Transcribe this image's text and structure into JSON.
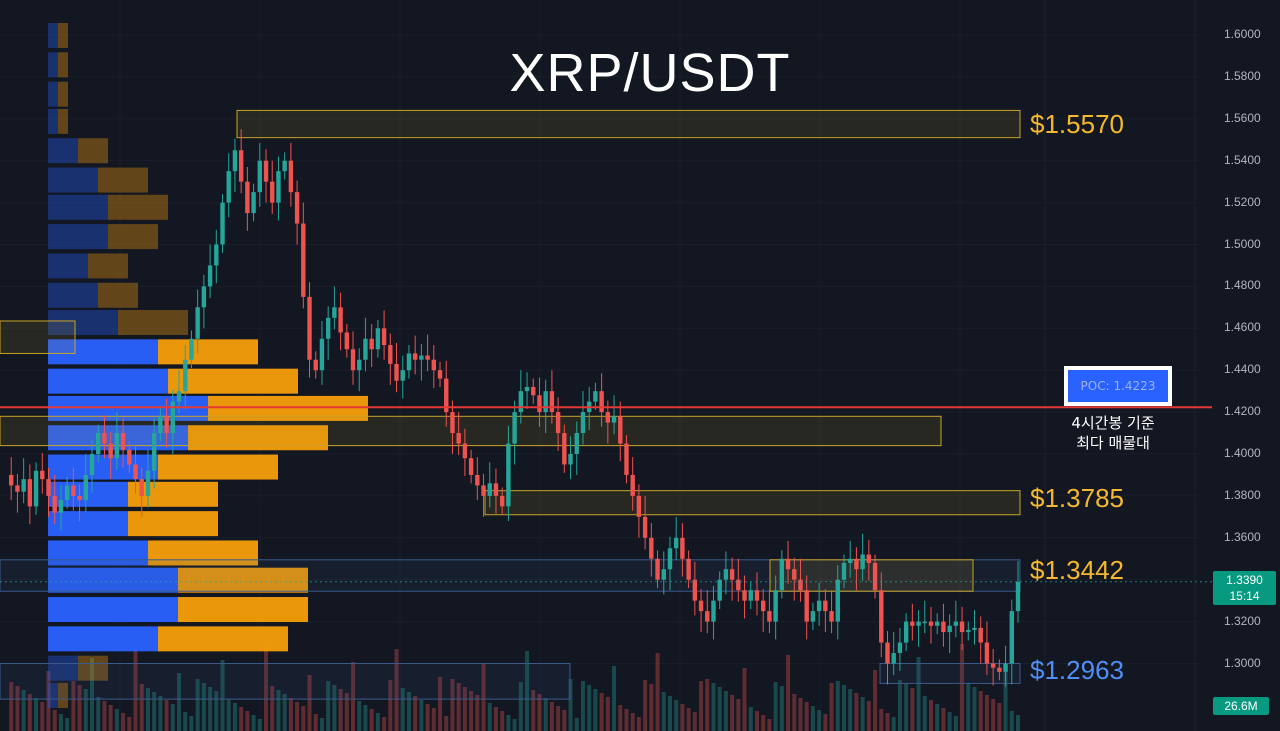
{
  "title": "XRP/USDT",
  "colors": {
    "background": "#131722",
    "candle_up": "#26a69a",
    "candle_down": "#ef5350",
    "profile_buy": "#2962ff",
    "profile_sell": "#f59e0b",
    "poc_line": "#e53935",
    "zone_yellow": "#c9a227",
    "zone_blue": "#3a5a8c",
    "label_gold": "#f5b82e",
    "label_blue": "#4f8ef7"
  },
  "levels": [
    {
      "id": "level-1-5570",
      "label": "$1.5570",
      "price": 1.557,
      "color": "#f5b82e"
    },
    {
      "id": "level-1-3785",
      "label": "$1.3785",
      "price": 1.3785,
      "color": "#f5b82e"
    },
    {
      "id": "level-1-3442",
      "label": "$1.3442",
      "price": 1.3442,
      "color": "#f5b82e"
    },
    {
      "id": "level-1-2963",
      "label": "$1.2963",
      "price": 1.2963,
      "color": "#4f8ef7"
    }
  ],
  "poc": {
    "label": "POC: 1.4223",
    "price": 1.4223,
    "note_line1": "4시간봉 기준",
    "note_line2": "최다 매물대"
  },
  "current": {
    "price": "1.3390",
    "countdown": "15:14"
  },
  "volume_tag": "26.6M",
  "chart_data": {
    "type": "candlestick",
    "title": "XRP/USDT",
    "timeframe_note": "4시간봉 기준",
    "yaxis": {
      "ticks": [
        "1.6000",
        "1.5800",
        "1.5600",
        "1.5400",
        "1.5200",
        "1.5000",
        "1.4800",
        "1.4600",
        "1.4400",
        "1.4200",
        "1.4000",
        "1.3800",
        "1.3600",
        "1.3400",
        "1.3200",
        "1.3000"
      ],
      "range": [
        1.28,
        1.61
      ]
    },
    "key_levels": [
      1.557,
      1.4223,
      1.3785,
      1.3442,
      1.2963
    ],
    "last_price": 1.339,
    "last_volume": "26.6M",
    "price_path": [
      1.39,
      1.385,
      1.382,
      1.388,
      1.375,
      1.392,
      1.388,
      1.38,
      1.372,
      1.378,
      1.385,
      1.38,
      1.378,
      1.39,
      1.4,
      1.41,
      1.405,
      1.398,
      1.41,
      1.402,
      1.395,
      1.388,
      1.38,
      1.392,
      1.41,
      1.418,
      1.41,
      1.425,
      1.43,
      1.445,
      1.455,
      1.47,
      1.48,
      1.49,
      1.5,
      1.52,
      1.535,
      1.545,
      1.53,
      1.515,
      1.525,
      1.54,
      1.53,
      1.52,
      1.535,
      1.54,
      1.525,
      1.51,
      1.475,
      1.445,
      1.44,
      1.455,
      1.465,
      1.47,
      1.458,
      1.45,
      1.44,
      1.445,
      1.455,
      1.45,
      1.46,
      1.452,
      1.443,
      1.435,
      1.44,
      1.448,
      1.445,
      1.447,
      1.445,
      1.44,
      1.436,
      1.42,
      1.41,
      1.405,
      1.398,
      1.39,
      1.385,
      1.38,
      1.386,
      1.38,
      1.375,
      1.405,
      1.42,
      1.43,
      1.432,
      1.428,
      1.42,
      1.43,
      1.42,
      1.41,
      1.395,
      1.4,
      1.41,
      1.42,
      1.425,
      1.43,
      1.42,
      1.415,
      1.418,
      1.405,
      1.39,
      1.38,
      1.37,
      1.36,
      1.35,
      1.34,
      1.345,
      1.355,
      1.36,
      1.35,
      1.34,
      1.33,
      1.325,
      1.32,
      1.33,
      1.34,
      1.345,
      1.34,
      1.335,
      1.33,
      1.335,
      1.33,
      1.325,
      1.32,
      1.335,
      1.35,
      1.345,
      1.34,
      1.335,
      1.32,
      1.325,
      1.33,
      1.325,
      1.32,
      1.34,
      1.348,
      1.35,
      1.345,
      1.352,
      1.348,
      1.335,
      1.31,
      1.3,
      1.305,
      1.31,
      1.32,
      1.318,
      1.32,
      1.32,
      1.318,
      1.32,
      1.315,
      1.318,
      1.32,
      1.315,
      1.316,
      1.317,
      1.31,
      1.3,
      1.298,
      1.296,
      1.3,
      1.325,
      1.339
    ],
    "volume_profile": [
      {
        "price": 1.6,
        "buy": 1,
        "sell": 1
      },
      {
        "price": 1.586,
        "buy": 1,
        "sell": 1
      },
      {
        "price": 1.572,
        "buy": 1,
        "sell": 1
      },
      {
        "price": 1.559,
        "buy": 1,
        "sell": 1
      },
      {
        "price": 1.545,
        "buy": 3,
        "sell": 3
      },
      {
        "price": 1.531,
        "buy": 5,
        "sell": 5
      },
      {
        "price": 1.518,
        "buy": 6,
        "sell": 6
      },
      {
        "price": 1.504,
        "buy": 6,
        "sell": 5
      },
      {
        "price": 1.49,
        "buy": 4,
        "sell": 4
      },
      {
        "price": 1.476,
        "buy": 5,
        "sell": 4
      },
      {
        "price": 1.463,
        "buy": 7,
        "sell": 7
      },
      {
        "price": 1.449,
        "buy": 11,
        "sell": 10
      },
      {
        "price": 1.435,
        "buy": 12,
        "sell": 13
      },
      {
        "price": 1.422,
        "buy": 16,
        "sell": 16
      },
      {
        "price": 1.408,
        "buy": 14,
        "sell": 14
      },
      {
        "price": 1.394,
        "buy": 11,
        "sell": 12
      },
      {
        "price": 1.381,
        "buy": 8,
        "sell": 9
      },
      {
        "price": 1.367,
        "buy": 8,
        "sell": 9
      },
      {
        "price": 1.353,
        "buy": 10,
        "sell": 11
      },
      {
        "price": 1.34,
        "buy": 13,
        "sell": 13
      },
      {
        "price": 1.326,
        "buy": 13,
        "sell": 13
      },
      {
        "price": 1.312,
        "buy": 11,
        "sell": 13
      },
      {
        "price": 1.298,
        "buy": 3,
        "sell": 3
      },
      {
        "price": 1.285,
        "buy": 1,
        "sell": 1
      }
    ]
  }
}
